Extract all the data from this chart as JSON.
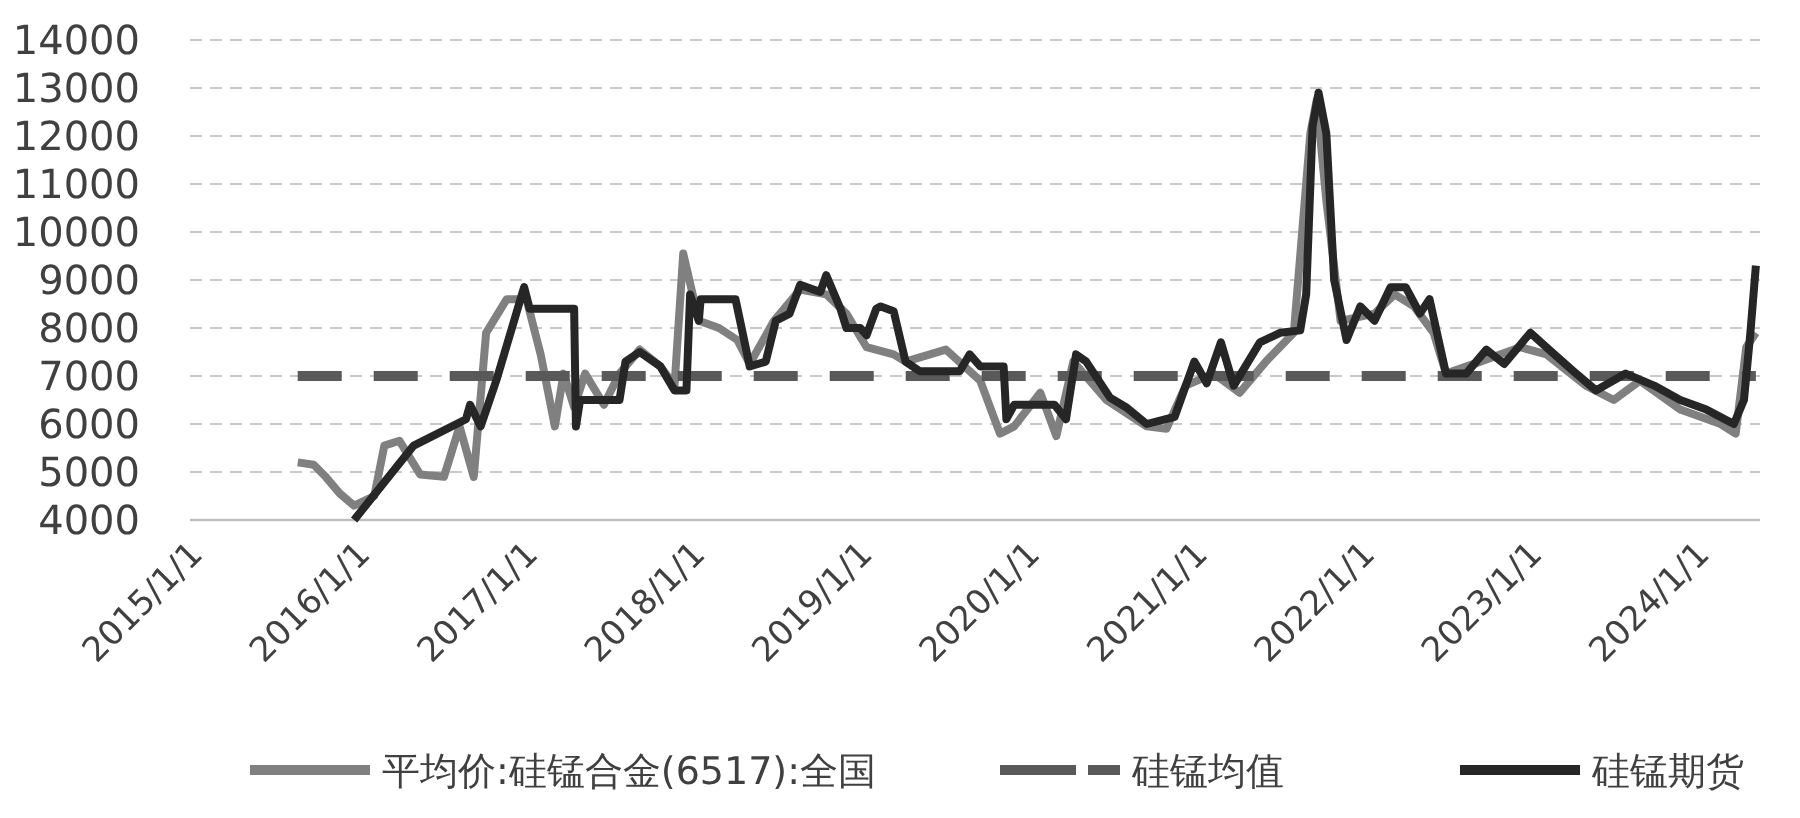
{
  "chart_data": {
    "type": "line",
    "xlim": [
      "2014-12-18",
      "2024-05-04"
    ],
    "xticks": [
      {
        "value": "2015-01-01",
        "label": "2015/1/1"
      },
      {
        "value": "2016-01-01",
        "label": "2016/1/1"
      },
      {
        "value": "2017-01-01",
        "label": "2017/1/1"
      },
      {
        "value": "2018-01-01",
        "label": "2018/1/1"
      },
      {
        "value": "2019-01-01",
        "label": "2019/1/1"
      },
      {
        "value": "2020-01-01",
        "label": "2020/1/1"
      },
      {
        "value": "2021-01-01",
        "label": "2021/1/1"
      },
      {
        "value": "2022-01-01",
        "label": "2022/1/1"
      },
      {
        "value": "2023-01-01",
        "label": "2023/1/1"
      },
      {
        "value": "2024-01-01",
        "label": "2024/1/1"
      }
    ],
    "ylim": [
      4000,
      14000
    ],
    "yticks": [
      4000,
      5000,
      6000,
      7000,
      8000,
      9000,
      10000,
      11000,
      12000,
      13000,
      14000
    ],
    "grid": "y",
    "legend": "bottom",
    "series": [
      {
        "name": "平均价:硅锰合金(6517):全国",
        "color": "#808080",
        "line_style": "solid",
        "x": [
          "2015-08-10",
          "2015-09-14",
          "2015-10-10",
          "2015-11-10",
          "2015-12-11",
          "2016-01-24",
          "2016-02-15",
          "2016-03-19",
          "2016-05-03",
          "2016-06-24",
          "2016-07-28",
          "2016-08-28",
          "2016-09-24",
          "2016-11-08",
          "2016-12-21",
          "2017-01-21",
          "2017-02-21",
          "2017-03-12",
          "2017-04-04",
          "2017-04-28",
          "2017-06-08",
          "2017-07-12",
          "2017-08-25",
          "2017-10-09",
          "2017-11-09",
          "2017-11-28",
          "2018-01-01",
          "2018-02-14",
          "2018-03-26",
          "2018-04-22",
          "2018-06-14",
          "2018-08-10",
          "2018-10-06",
          "2018-11-19",
          "2019-01-02",
          "2019-03-02",
          "2019-03-28",
          "2019-06-24",
          "2019-09-07",
          "2019-10-20",
          "2019-11-20",
          "2020-01-16",
          "2020-02-20",
          "2020-03-28",
          "2020-06-08",
          "2020-09-04",
          "2020-10-17",
          "2020-11-28",
          "2021-01-28",
          "2021-03-26",
          "2021-05-22",
          "2021-07-22",
          "2021-08-27",
          "2021-09-10",
          "2021-10-01",
          "2021-11-01",
          "2022-01-14",
          "2022-02-27",
          "2022-04-10",
          "2022-05-23",
          "2022-06-19",
          "2022-09-02",
          "2022-11-28",
          "2023-01-24",
          "2023-04-20",
          "2023-06-20",
          "2023-08-16",
          "2023-11-12",
          "2024-02-08",
          "2024-03-12",
          "2024-04-04",
          "2024-04-25"
        ],
        "values": [
          5200,
          5150,
          4900,
          4550,
          4300,
          4500,
          5550,
          5650,
          4950,
          4900,
          5950,
          4900,
          7900,
          8600,
          8600,
          7450,
          5950,
          7050,
          6350,
          7050,
          6400,
          7050,
          7550,
          7200,
          6800,
          9550,
          8150,
          8000,
          7750,
          7250,
          8150,
          8800,
          8700,
          8300,
          7600,
          7450,
          7300,
          7550,
          6900,
          5800,
          5950,
          6650,
          5750,
          7300,
          6500,
          5950,
          5900,
          6800,
          7050,
          6650,
          7300,
          7900,
          12050,
          12750,
          10650,
          8150,
          8300,
          8700,
          8450,
          7900,
          7050,
          7300,
          7600,
          7450,
          6800,
          6500,
          6900,
          6300,
          6000,
          5800,
          7600,
          7900
        ]
      },
      {
        "name": "硅锰均值",
        "color": "#595959",
        "line_style": "dashed",
        "x": [
          "2015-08-10",
          "2024-04-25"
        ],
        "values": [
          7000,
          7000
        ]
      },
      {
        "name": "硅锰期货",
        "color": "#262626",
        "line_style": "solid",
        "x": [
          "2015-12-11",
          "2016-04-19",
          "2016-08-11",
          "2016-08-20",
          "2016-09-12",
          "2016-10-16",
          "2016-12-08",
          "2016-12-16",
          "2016-12-28",
          "2017-04-04",
          "2017-04-08",
          "2017-04-17",
          "2017-07-12",
          "2017-07-25",
          "2017-08-25",
          "2017-10-09",
          "2017-11-09",
          "2017-12-05",
          "2017-12-13",
          "2018-01-01",
          "2018-01-05",
          "2018-03-22",
          "2018-04-22",
          "2018-05-27",
          "2018-06-18",
          "2018-07-18",
          "2018-08-10",
          "2018-09-23",
          "2018-10-06",
          "2018-11-06",
          "2018-11-19",
          "2018-12-19",
          "2019-01-02",
          "2019-01-23",
          "2019-02-02",
          "2019-03-02",
          "2019-03-28",
          "2019-04-28",
          "2019-07-24",
          "2019-08-15",
          "2019-09-07",
          "2019-10-28",
          "2019-11-03",
          "2019-11-20",
          "2020-02-16",
          "2020-03-12",
          "2020-04-03",
          "2020-04-25",
          "2020-06-16",
          "2020-07-21",
          "2020-09-04",
          "2020-11-04",
          "2020-12-17",
          "2021-01-13",
          "2021-02-13",
          "2021-03-13",
          "2021-05-09",
          "2021-06-22",
          "2021-08-05",
          "2021-08-18",
          "2021-09-01",
          "2021-09-14",
          "2021-10-01",
          "2021-10-18",
          "2021-11-14",
          "2021-12-14",
          "2022-01-14",
          "2022-02-18",
          "2022-03-23",
          "2022-04-23",
          "2022-05-14",
          "2022-06-19",
          "2022-08-02",
          "2022-09-15",
          "2022-10-24",
          "2022-12-20",
          "2023-01-24",
          "2023-03-24",
          "2023-05-12",
          "2023-07-16",
          "2023-09-16",
          "2023-11-12",
          "2024-01-08",
          "2024-03-08",
          "2024-03-30",
          "2024-04-13",
          "2024-04-25"
        ],
        "values": [
          4000,
          5550,
          6100,
          6400,
          5950,
          6900,
          8600,
          8850,
          8400,
          8400,
          5950,
          6500,
          6500,
          7300,
          7500,
          7200,
          6700,
          6700,
          8700,
          8150,
          8600,
          8600,
          7200,
          7300,
          8150,
          8300,
          8900,
          8750,
          9100,
          8400,
          8000,
          8000,
          7850,
          8400,
          8450,
          8350,
          7300,
          7100,
          7100,
          7450,
          7200,
          7200,
          6100,
          6400,
          6400,
          6100,
          7450,
          7300,
          6550,
          6350,
          6000,
          6150,
          7300,
          6850,
          7700,
          6800,
          7700,
          7900,
          7950,
          8700,
          12200,
          12900,
          12050,
          9000,
          7750,
          8450,
          8150,
          8850,
          8850,
          8300,
          8600,
          7050,
          7050,
          7550,
          7250,
          7900,
          7600,
          7100,
          6700,
          7050,
          6800,
          6500,
          6300,
          6000,
          6500,
          7900,
          9300
        ]
      }
    ]
  }
}
